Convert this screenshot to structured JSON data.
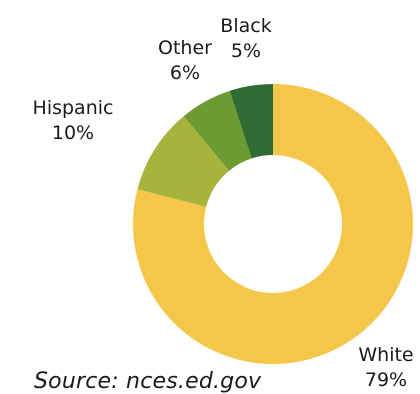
{
  "chart_data": {
    "type": "pie",
    "variant": "donut",
    "title": "",
    "categories": [
      "White",
      "Hispanic",
      "Other",
      "Black"
    ],
    "values": [
      79,
      10,
      6,
      5
    ],
    "value_labels": [
      "79%",
      "10%",
      "6%",
      "5%"
    ],
    "colors": [
      "#f4c64a",
      "#a7b43c",
      "#6d9a33",
      "#306b33"
    ],
    "start": "12 o'clock",
    "direction": "clockwise",
    "legend": "none"
  },
  "footer": {
    "source": "Source: nces.ed.gov"
  }
}
